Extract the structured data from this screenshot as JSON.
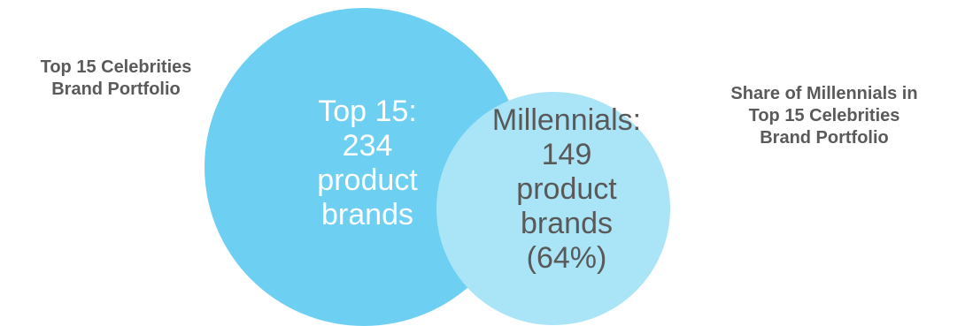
{
  "colors": {
    "big_circle": "#6dcff2",
    "small_circle": "#a9e4f7",
    "label_text": "#5a5a5a",
    "big_circle_text": "#ffffff",
    "small_circle_text": "#595959"
  },
  "left_label": {
    "line1": "Top 15 Celebrities",
    "line2": "Brand Portfolio"
  },
  "right_label": {
    "line1": "Share of Millennials in",
    "line2": "Top 15 Celebrities",
    "line3": "Brand Portfolio"
  },
  "big_circle": {
    "line1": "Top 15:",
    "line2": "234",
    "line3": "product",
    "line4": "brands"
  },
  "small_circle": {
    "line1": "Millennials:",
    "line2": "149",
    "line3": "product",
    "line4": "brands",
    "line5": "(64%)"
  }
}
